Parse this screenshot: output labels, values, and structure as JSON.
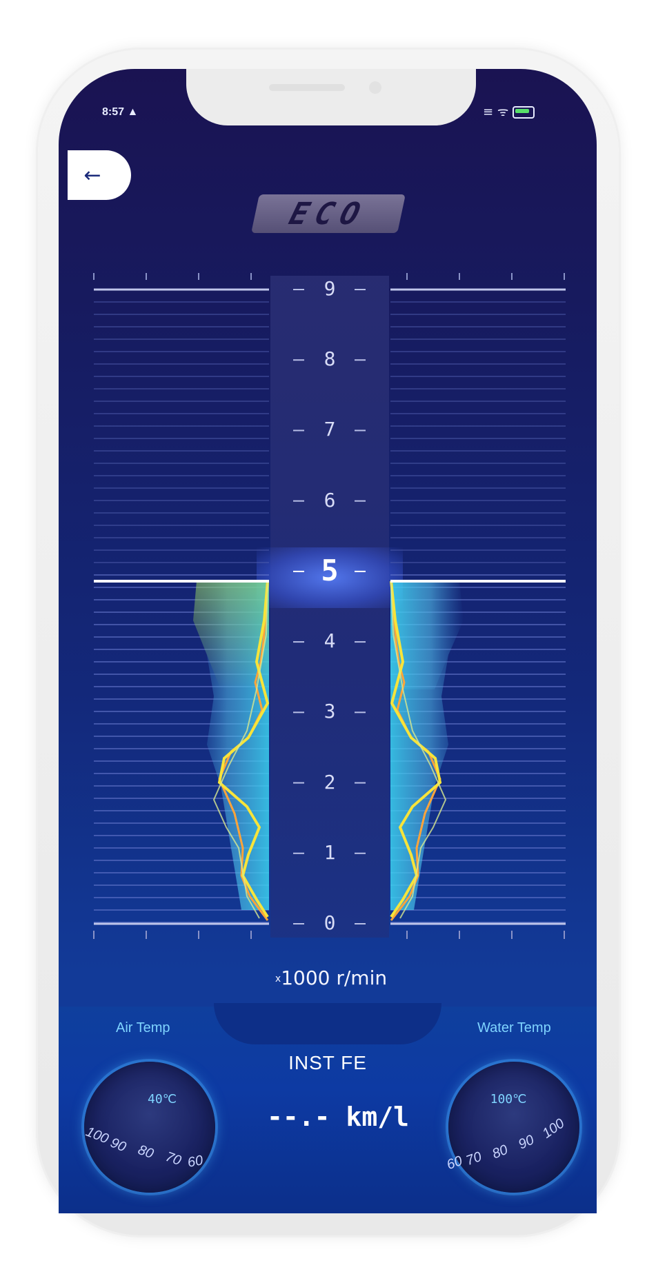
{
  "status_bar": {
    "time": "8:57 ▲",
    "icons": "≡ ᯤ"
  },
  "back_icon": "arrow-left",
  "mode_badge": "ECO",
  "rpm_gauge": {
    "scale_labels": [
      "9",
      "8",
      "7",
      "6",
      "5",
      "4",
      "3",
      "2",
      "1",
      "0"
    ],
    "active_label": "5",
    "unit_prefix": "x",
    "unit": "1000 r/min",
    "limit_value": 5
  },
  "air_temp": {
    "title": "Air Temp",
    "reading": "40℃",
    "scale": [
      "100",
      "90",
      "80",
      "70",
      "60"
    ]
  },
  "water_temp": {
    "title": "Water Temp",
    "reading": "100℃",
    "scale": [
      "60",
      "70",
      "80",
      "90",
      "100"
    ]
  },
  "inst_fe": {
    "label": "INST FE",
    "value": "--.- km/l"
  },
  "colors": {
    "accent": "#7fd4ff",
    "trace_orange": "#ffa43a",
    "trace_yellow": "#f7e43a",
    "fill_green": "#8fce5a",
    "fill_cyan": "#33c8f0"
  }
}
